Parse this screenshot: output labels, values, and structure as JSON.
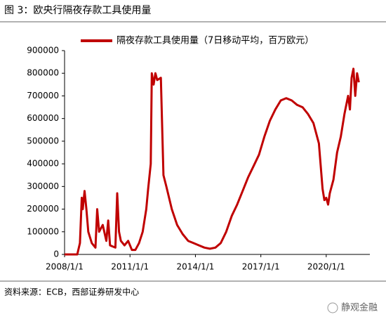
{
  "chart_data": {
    "type": "line",
    "title": "图 3：欧央行隔夜存款工具使用量",
    "source": "资料来源：ECB，西部证券研发中心",
    "watermark": "静观金融",
    "legend_position": "top",
    "x": [
      "2008/1/1",
      "2008/8/1",
      "2008/9/15",
      "2008/10/15",
      "2008/11/1",
      "2008/12/1",
      "2009/1/1",
      "2009/2/1",
      "2009/4/1",
      "2009/6/1",
      "2009/7/1",
      "2009/8/1",
      "2009/10/1",
      "2009/12/1",
      "2010/1/1",
      "2010/2/1",
      "2010/5/1",
      "2010/6/1",
      "2010/7/1",
      "2010/8/1",
      "2010/10/1",
      "2010/12/1",
      "2011/2/1",
      "2011/4/1",
      "2011/6/1",
      "2011/8/1",
      "2011/10/1",
      "2011/11/1",
      "2011/12/15",
      "2012/1/1",
      "2012/2/1",
      "2012/3/1",
      "2012/4/1",
      "2012/6/1",
      "2012/7/15",
      "2012/9/1",
      "2012/12/1",
      "2013/3/1",
      "2013/6/1",
      "2013/9/1",
      "2013/12/1",
      "2014/3/1",
      "2014/6/1",
      "2014/9/1",
      "2014/12/1",
      "2015/3/1",
      "2015/6/1",
      "2015/9/1",
      "2015/12/1",
      "2016/3/1",
      "2016/6/1",
      "2016/9/1",
      "2016/12/1",
      "2017/3/1",
      "2017/6/1",
      "2017/9/1",
      "2017/12/1",
      "2018/3/1",
      "2018/6/1",
      "2018/9/1",
      "2018/12/1",
      "2019/3/1",
      "2019/6/1",
      "2019/9/1",
      "2019/11/1",
      "2019/12/1",
      "2020/1/1",
      "2020/2/1",
      "2020/3/1",
      "2020/5/1",
      "2020/7/1",
      "2020/9/1",
      "2020/11/1",
      "2021/1/1",
      "2021/2/1",
      "2021/3/1",
      "2021/4/1",
      "2021/5/1",
      "2021/6/1",
      "2021/7/1"
    ],
    "series": [
      {
        "name": "隔夜存款工具使用量（7日移动平均，百万欧元）",
        "color": "#c00000",
        "values": [
          0,
          0,
          50000,
          250000,
          200000,
          280000,
          200000,
          100000,
          50000,
          30000,
          200000,
          100000,
          130000,
          60000,
          150000,
          40000,
          30000,
          270000,
          100000,
          60000,
          40000,
          60000,
          20000,
          20000,
          50000,
          100000,
          200000,
          290000,
          400000,
          800000,
          750000,
          800000,
          770000,
          780000,
          350000,
          300000,
          200000,
          130000,
          90000,
          60000,
          50000,
          40000,
          30000,
          25000,
          30000,
          50000,
          100000,
          170000,
          220000,
          280000,
          340000,
          390000,
          440000,
          520000,
          590000,
          640000,
          680000,
          690000,
          680000,
          660000,
          650000,
          620000,
          580000,
          490000,
          290000,
          240000,
          250000,
          220000,
          270000,
          330000,
          450000,
          520000,
          620000,
          700000,
          640000,
          780000,
          820000,
          700000,
          800000,
          760000
        ]
      }
    ],
    "xlim": [
      "2008/1/1",
      "2022/1/1"
    ],
    "xticks": [
      "2008/1/1",
      "2011/1/1",
      "2014/1/1",
      "2017/1/1",
      "2020/1/1"
    ],
    "ylim": [
      0,
      900000
    ],
    "yticks": [
      0,
      100000,
      200000,
      300000,
      400000,
      500000,
      600000,
      700000,
      800000,
      900000
    ],
    "grid": false
  }
}
